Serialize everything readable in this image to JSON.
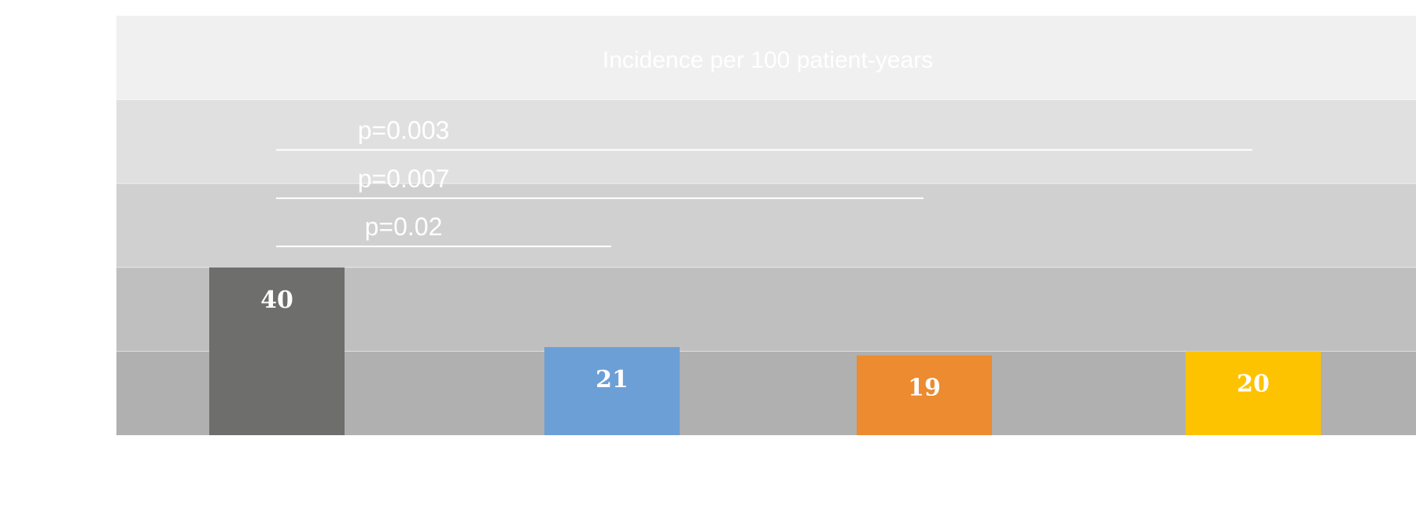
{
  "chart_data": {
    "type": "bar",
    "title": "Incidence per 100 patient-years",
    "xlabel": "",
    "ylabel": "",
    "ylim": [
      0,
      100
    ],
    "grid": false,
    "bands": {
      "colors": [
        "#b0b0b0",
        "#bfbfbf",
        "#d0d0d0",
        "#e0e0e0",
        "#f0f0f0"
      ]
    },
    "categories": [
      "",
      "",
      "",
      ""
    ],
    "values": [
      40,
      21,
      19,
      20
    ],
    "value_labels": [
      "40",
      "21",
      "19",
      "20"
    ],
    "colors": [
      "#6e6e6c",
      "#6c9fd6",
      "#ec8b2f",
      "#fec300"
    ],
    "comparisons": [
      {
        "from": 0,
        "to": 3,
        "label": "p=0.003",
        "level": 68
      },
      {
        "from": 0,
        "to": 2,
        "label": "p=0.007",
        "level": 56.5
      },
      {
        "from": 0,
        "to": 1,
        "label": "p=0.02",
        "level": 45
      }
    ]
  }
}
